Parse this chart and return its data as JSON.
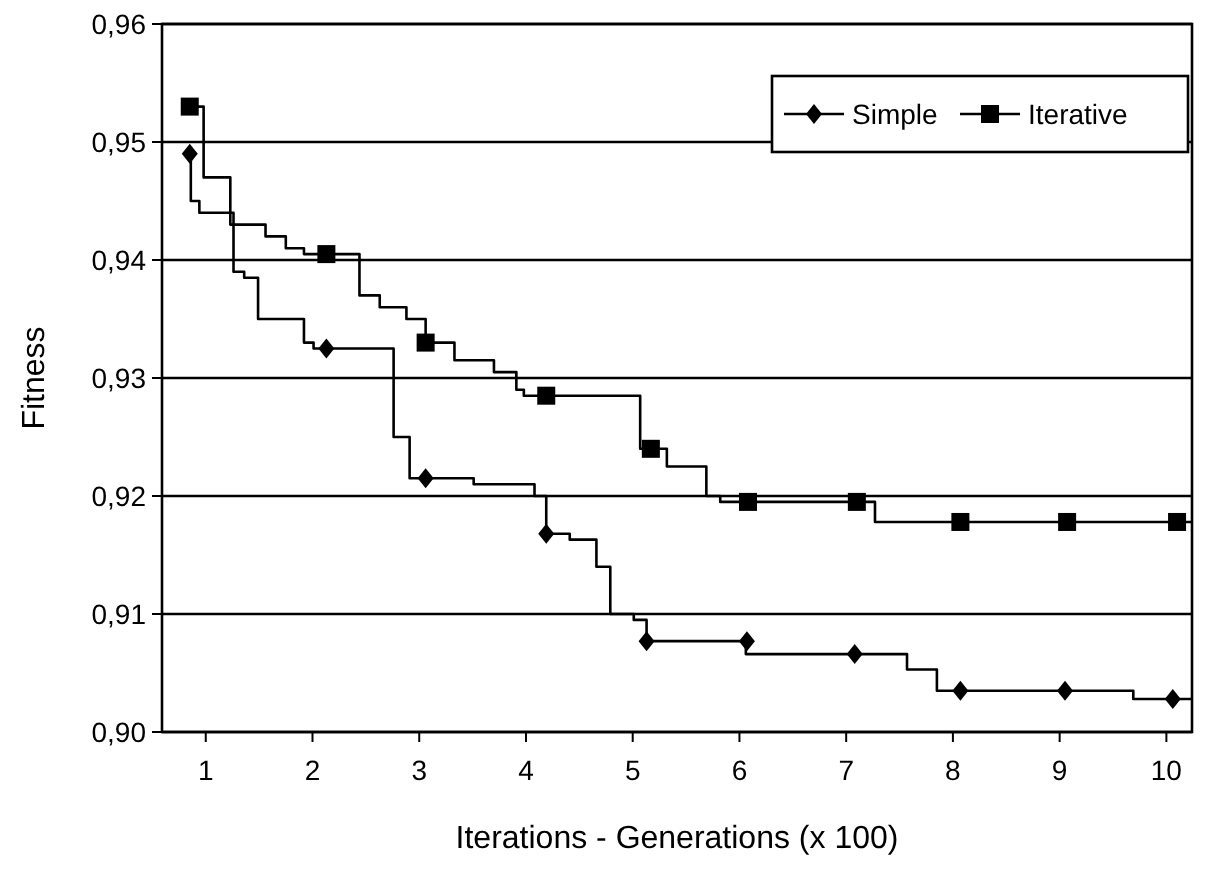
{
  "chart_data": {
    "type": "step",
    "xlabel": "Iterations - Generations (x 100)",
    "ylabel": "Fitness",
    "xlim": [
      0.59,
      10.24
    ],
    "xticks": [
      1,
      2,
      3,
      4,
      5,
      6,
      7,
      8,
      9,
      10
    ],
    "ylim": [
      0.9,
      0.96
    ],
    "yticks": [
      {
        "value": 0.9,
        "label": "0,90"
      },
      {
        "value": 0.91,
        "label": "0,91"
      },
      {
        "value": 0.92,
        "label": "0,92"
      },
      {
        "value": 0.93,
        "label": "0,93"
      },
      {
        "value": 0.94,
        "label": "0,94"
      },
      {
        "value": 0.95,
        "label": "0,95"
      },
      {
        "value": 0.96,
        "label": "0,96"
      }
    ],
    "grid": "y",
    "legend": "top right",
    "series": [
      {
        "color": "#000000",
        "marker": "none",
        "x": [
          0.85,
          0.86,
          0.94,
          1.26,
          1.36,
          1.49,
          1.92,
          2.01,
          2.76,
          2.91,
          3.51,
          4.08,
          4.19,
          4.41,
          4.66,
          4.79,
          5.01,
          5.13,
          6.06,
          7.57,
          7.85,
          9.69,
          10.24
        ],
        "values": [
          0.949,
          0.945,
          0.944,
          0.939,
          0.9385,
          0.935,
          0.933,
          0.9325,
          0.925,
          0.9215,
          0.921,
          0.92,
          0.9168,
          0.9163,
          0.914,
          0.91,
          0.9095,
          0.9077,
          0.9066,
          0.9053,
          0.9035,
          0.9028,
          0.9028
        ]
      },
      {
        "type": "scatter",
        "name": "Simple",
        "color": "#000000",
        "marker": "diamond",
        "x": [
          0.85,
          2.13,
          3.06,
          4.19,
          5.13,
          6.07,
          7.08,
          8.07,
          9.05,
          10.06
        ],
        "values": [
          0.949,
          0.9325,
          0.9215,
          0.9168,
          0.9077,
          0.9077,
          0.9066,
          0.9035,
          0.9035,
          0.9028
        ]
      },
      {
        "color": "#000000",
        "marker": "none",
        "x": [
          0.85,
          0.98,
          1.23,
          1.56,
          1.75,
          1.92,
          2.44,
          2.63,
          2.88,
          3.06,
          3.33,
          3.7,
          3.91,
          3.98,
          5.07,
          5.32,
          5.69,
          5.82,
          7.27,
          10.24
        ],
        "values": [
          0.953,
          0.947,
          0.943,
          0.942,
          0.941,
          0.9405,
          0.937,
          0.936,
          0.935,
          0.933,
          0.9315,
          0.9305,
          0.929,
          0.9285,
          0.924,
          0.9225,
          0.92,
          0.9195,
          0.9178,
          0.9178
        ]
      },
      {
        "type": "scatter",
        "name": "Iterative",
        "color": "#000000",
        "marker": "square",
        "x": [
          0.85,
          2.13,
          3.06,
          4.19,
          5.17,
          6.08,
          7.1,
          8.07,
          9.07,
          10.1
        ],
        "values": [
          0.953,
          0.9405,
          0.933,
          0.9285,
          0.924,
          0.9195,
          0.9195,
          0.9178,
          0.9178,
          0.9178
        ]
      }
    ]
  }
}
